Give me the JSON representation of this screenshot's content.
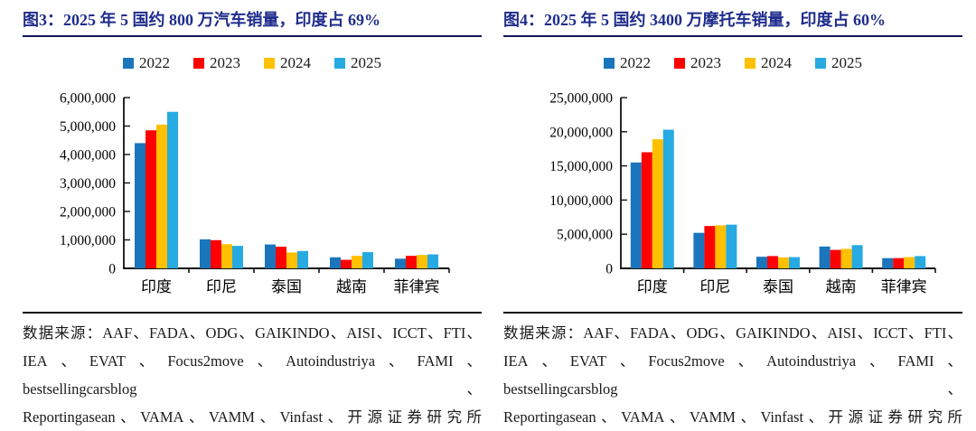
{
  "theme": {
    "title_color": "#1F2C8C",
    "axis_color": "#111111",
    "text_color": "#1a1a1a"
  },
  "panels": [
    {
      "title": "图3：2025 年 5 国约 800 万汽车销量，印度占 69%",
      "source": {
        "lines": [
          "数据来源：AAF、FADA、ODG、GAIKINDO、AISI、ICCT、FTI、",
          "IEA、EVAT、Focus2move、Autoindustriya、FAMI、bestsellingcarsblog、",
          "Reportingasean、VAMA、VAMM、Vinfast、开源证券研究所"
        ]
      }
    },
    {
      "title": "图4：2025 年 5 国约 3400 万摩托车销量，印度占 60%",
      "source": {
        "lines": [
          "数据来源：AAF、FADA、ODG、GAIKINDO、AISI、ICCT、FTI、",
          "IEA、EVAT、Focus2move、Autoindustriya、FAMI、bestsellingcarsblog、",
          "Reportingasean、VAMA、VAMM、Vinfast、开源证券研究所"
        ]
      }
    }
  ],
  "chart_data": [
    {
      "type": "bar",
      "title": "图3：2025 年 5 国约 800 万汽车销量，印度占 69%",
      "categories": [
        "印度",
        "印尼",
        "泰国",
        "越南",
        "菲律宾"
      ],
      "series": [
        {
          "name": "2022",
          "color": "#1B75BC",
          "values": [
            4400000,
            1020000,
            840000,
            390000,
            340000
          ]
        },
        {
          "name": "2023",
          "color": "#FF0000",
          "values": [
            4850000,
            990000,
            760000,
            300000,
            440000
          ]
        },
        {
          "name": "2024",
          "color": "#FFC000",
          "values": [
            5050000,
            850000,
            560000,
            440000,
            470000
          ]
        },
        {
          "name": "2025",
          "color": "#27AAE1",
          "values": [
            5500000,
            790000,
            610000,
            570000,
            490000
          ]
        }
      ],
      "ylim": [
        0,
        6000000
      ],
      "ytick_step": 1000000,
      "ytick_labels": [
        "0",
        "1,000,000",
        "2,000,000",
        "3,000,000",
        "4,000,000",
        "5,000,000",
        "6,000,000"
      ],
      "xlabel": "",
      "ylabel": "",
      "grid": false,
      "legend_position": "top"
    },
    {
      "type": "bar",
      "title": "图4：2025 年 5 国约 3400 万摩托车销量，印度占 60%",
      "categories": [
        "印度",
        "印尼",
        "泰国",
        "越南",
        "菲律宾"
      ],
      "series": [
        {
          "name": "2022",
          "color": "#1B75BC",
          "values": [
            15500000,
            5200000,
            1700000,
            3200000,
            1500000
          ]
        },
        {
          "name": "2023",
          "color": "#FF0000",
          "values": [
            17000000,
            6200000,
            1800000,
            2700000,
            1500000
          ]
        },
        {
          "name": "2024",
          "color": "#FFC000",
          "values": [
            18900000,
            6300000,
            1600000,
            2850000,
            1650000
          ]
        },
        {
          "name": "2025",
          "color": "#27AAE1",
          "values": [
            20300000,
            6400000,
            1650000,
            3400000,
            1800000
          ]
        }
      ],
      "ylim": [
        0,
        25000000
      ],
      "ytick_step": 5000000,
      "ytick_labels": [
        "0",
        "5,000,000",
        "10,000,000",
        "15,000,000",
        "20,000,000",
        "25,000,000"
      ],
      "xlabel": "",
      "ylabel": "",
      "grid": false,
      "legend_position": "top"
    }
  ]
}
